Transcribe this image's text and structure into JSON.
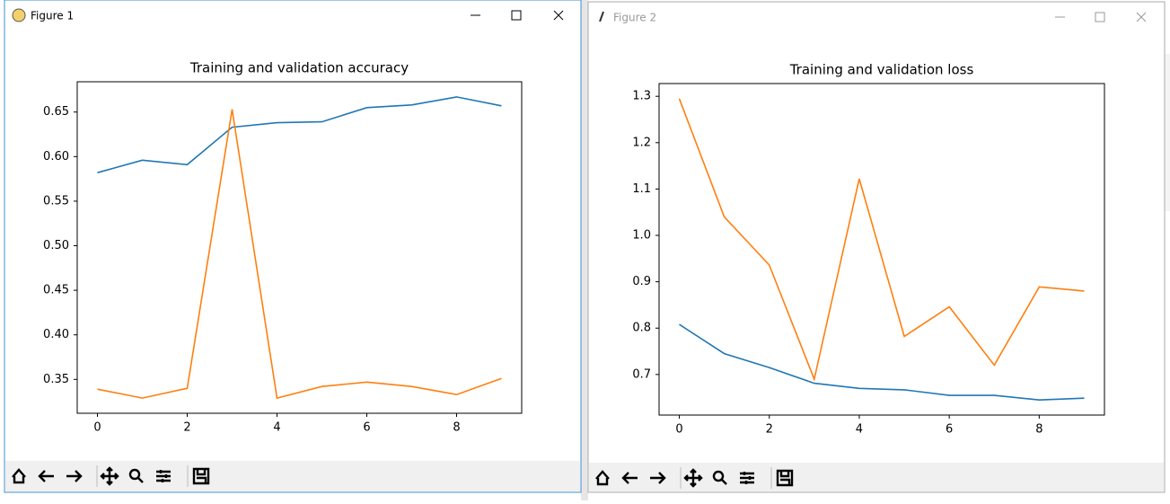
{
  "windows": [
    {
      "title": "Figure 1"
    },
    {
      "title": "Figure 2"
    }
  ],
  "chart_data": [
    {
      "type": "line",
      "title": "Training and validation accuracy",
      "x": [
        0,
        1,
        2,
        3,
        4,
        5,
        6,
        7,
        8,
        9
      ],
      "series": [
        {
          "color": "#1f77b4",
          "values": [
            0.582,
            0.596,
            0.591,
            0.633,
            0.638,
            0.639,
            0.655,
            0.658,
            0.667,
            0.657
          ]
        },
        {
          "color": "#ff7f0e",
          "values": [
            0.339,
            0.329,
            0.34,
            0.653,
            0.329,
            0.342,
            0.347,
            0.342,
            0.333,
            0.351
          ]
        }
      ],
      "xlim": [
        -0.45,
        9.45
      ],
      "xticks": [
        0,
        2,
        4,
        6,
        8
      ],
      "ylim": [
        0.312,
        0.684
      ],
      "yticks": [
        0.35,
        {
          "value": 0.4,
          "label": "0.40"
        },
        0.45,
        {
          "value": 0.5,
          "label": "0.50"
        },
        0.55,
        {
          "value": 0.6,
          "label": "0.60"
        },
        0.65
      ]
    },
    {
      "type": "line",
      "title": "Training and validation loss",
      "x": [
        0,
        1,
        2,
        3,
        4,
        5,
        6,
        7,
        8,
        9
      ],
      "series": [
        {
          "color": "#1f77b4",
          "values": [
            0.808,
            0.745,
            0.715,
            0.681,
            0.67,
            0.667,
            0.655,
            0.655,
            0.645,
            0.649
          ]
        },
        {
          "color": "#ff7f0e",
          "values": [
            1.295,
            1.04,
            0.936,
            0.69,
            1.122,
            0.782,
            0.846,
            0.72,
            0.889,
            0.88
          ]
        }
      ],
      "xlim": [
        -0.45,
        9.45
      ],
      "xticks": [
        0,
        2,
        4,
        6,
        8
      ],
      "ylim": [
        0.6125,
        1.3275
      ],
      "yticks": [
        0.7,
        0.8,
        0.9,
        {
          "value": 1,
          "label": "1.0"
        },
        1.1,
        1.2,
        1.3
      ]
    }
  ]
}
